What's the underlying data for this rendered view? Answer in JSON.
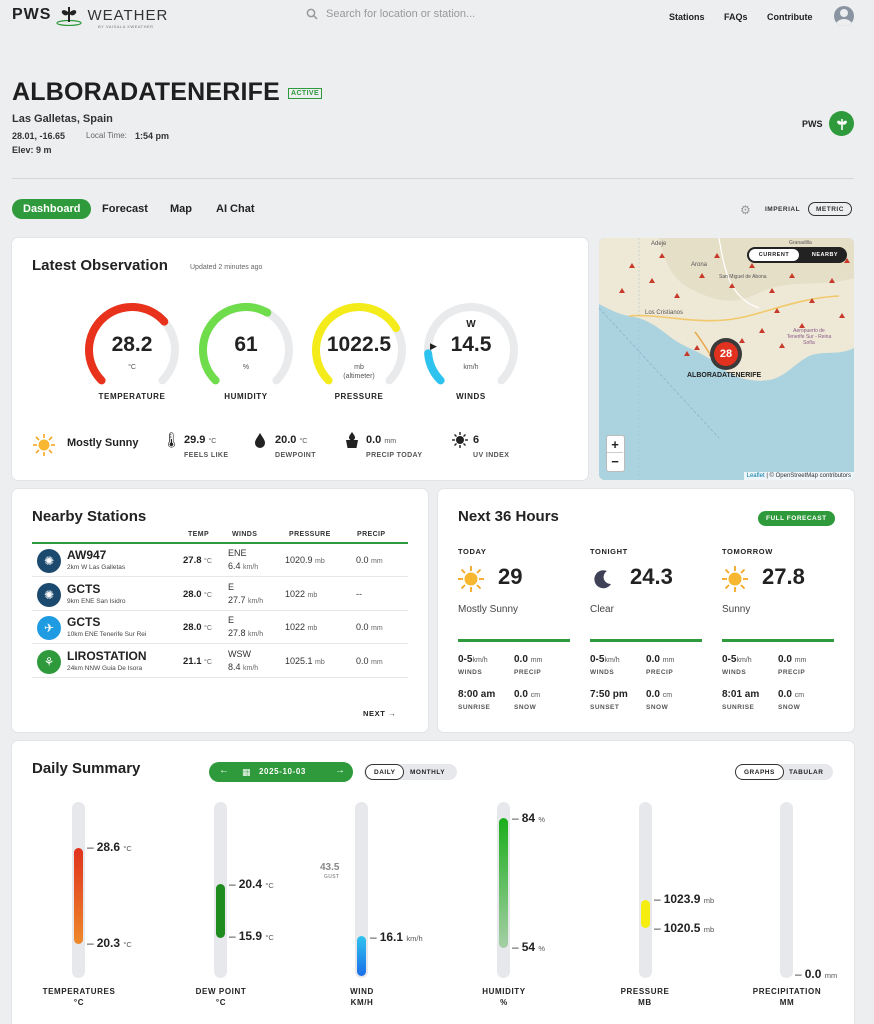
{
  "header": {
    "logo_pws": "PWS",
    "logo_weather": "WEATHER",
    "logo_sub": "BY VAISALA XWEATHER",
    "search_placeholder": "Search for location or station...",
    "nav": [
      "Stations",
      "FAQs",
      "Contribute"
    ]
  },
  "station": {
    "name": "ALBORADATENERIFE",
    "status": "ACTIVE",
    "location": "Las Galletas, Spain",
    "coords": "28.01, -16.65",
    "local_time_label": "Local Time:",
    "local_time": "1:54 pm",
    "elevation": "Elev: 9 m",
    "pws_badge": "PWS"
  },
  "tabs": [
    "Dashboard",
    "Forecast",
    "Map",
    "AI Chat"
  ],
  "units": {
    "imperial": "IMPERIAL",
    "metric": "METRIC",
    "selected": "METRIC"
  },
  "latest": {
    "title": "Latest Observation",
    "updated": "Updated 2 minutes ago",
    "gauges": [
      {
        "label": "TEMPERATURE",
        "value": "28.2",
        "unit": "°C",
        "fraction": 0.68,
        "color": "#e8321b"
      },
      {
        "label": "HUMIDITY",
        "value": "61",
        "unit": "%",
        "fraction": 0.61,
        "color": "#6fdc4c"
      },
      {
        "label": "PRESSURE",
        "value": "1022.5",
        "unit": "mb",
        "unit2": "(altimeter)",
        "fraction": 0.72,
        "color": "#f4ec1a"
      },
      {
        "label": "WINDS",
        "value": "14.5",
        "unit": "km/h",
        "direction": "W",
        "fraction": 0.15,
        "color": "#2ec3ef"
      }
    ],
    "condition": "Mostly Sunny",
    "feels_like": {
      "value": "29.9",
      "unit": "°C",
      "label": "FEELS LIKE"
    },
    "dewpoint": {
      "value": "20.0",
      "unit": "°C",
      "label": "DEWPOINT"
    },
    "precip": {
      "value": "0.0",
      "unit": "mm",
      "label": "PRECIP TODAY"
    },
    "uv": {
      "value": "6",
      "label": "UV INDEX"
    }
  },
  "map": {
    "toggle_current": "CURRENT",
    "toggle_nearby": "NEARBY",
    "marker_value": "28",
    "marker_label": "ALBORADATENERIFE",
    "zoom_in": "+",
    "zoom_out": "−",
    "attribution_leaflet": "Leaflet",
    "attribution_rest": "| © OpenStreetMap contributors",
    "places": [
      "Adeje",
      "Arona",
      "Granadilla",
      "San Miguel de Abona",
      "Los Cristianos",
      "Aeropuerto de Tenerife Sur - Reina Sofía"
    ]
  },
  "nearby": {
    "title": "Nearby Stations",
    "headers": [
      "TEMP",
      "WINDS",
      "PRESSURE",
      "PRECIP"
    ],
    "rows": [
      {
        "id": "AW947",
        "desc": "2km W Las Galletas",
        "temp": "27.8",
        "wind_dir": "ENE",
        "wind_speed": "6.4",
        "pressure": "1020.9",
        "precip": "0.0 mm",
        "icon": "aw-icon",
        "color": "#1c4a6e"
      },
      {
        "id": "GCTS",
        "desc": "9km ENE San Isidro",
        "temp": "28.0",
        "wind_dir": "E",
        "wind_speed": "27.7",
        "pressure": "1022",
        "precip": "--",
        "icon": "aw-icon",
        "color": "#1c4a6e"
      },
      {
        "id": "GCTS",
        "desc": "10km ENE Tenerife Sur Rei",
        "temp": "28.0",
        "wind_dir": "E",
        "wind_speed": "27.8",
        "pressure": "1022",
        "precip": "0.0 mm",
        "icon": "airplane-icon",
        "color": "#1f9be2"
      },
      {
        "id": "LIROSTATION",
        "desc": "24km NNW Guia De Isora",
        "temp": "21.1",
        "wind_dir": "WSW",
        "wind_speed": "8.4",
        "pressure": "1025.1",
        "precip": "0.0 mm",
        "icon": "pws-icon",
        "color": "#2e9a3b"
      }
    ],
    "temp_unit": "°C",
    "wind_unit": "km/h",
    "pressure_unit": "mb",
    "next": "NEXT"
  },
  "next36": {
    "title": "Next 36 Hours",
    "full_forecast": "FULL FORECAST",
    "periods": [
      {
        "label": "TODAY",
        "temp": "29",
        "cond": "Mostly Sunny",
        "icon": "sun-icon",
        "winds": "0-5",
        "precip": "0.0",
        "time": "8:00 am",
        "time_label": "SUNRISE",
        "snow": "0.0"
      },
      {
        "label": "TONIGHT",
        "temp": "24.3",
        "cond": "Clear",
        "icon": "moon-icon",
        "winds": "0-5",
        "precip": "0.0",
        "time": "7:50 pm",
        "time_label": "SUNSET",
        "snow": "0.0"
      },
      {
        "label": "TOMORROW",
        "temp": "27.8",
        "cond": "Sunny",
        "icon": "sun-icon",
        "winds": "0-5",
        "precip": "0.0",
        "time": "8:01 am",
        "time_label": "SUNRISE",
        "snow": "0.0"
      }
    ],
    "winds_unit": "km/h",
    "winds_label": "WINDS",
    "precip_unit": "mm",
    "precip_label": "PRECIP",
    "snow_unit": "cm",
    "snow_label": "SNOW"
  },
  "daily": {
    "title": "Daily Summary",
    "date": "2025-10-03",
    "toggle_daily": "DAILY",
    "toggle_monthly": "MONTHLY",
    "toggle_graphs": "GRAPHS",
    "toggle_tabular": "TABULAR",
    "temperatures": {
      "label": "TEMPERATURES",
      "unit_label": "°C",
      "high": "28.6",
      "low": "20.3",
      "unit": "°C"
    },
    "dewpoint": {
      "label": "DEW POINT",
      "unit_label": "°C",
      "high": "20.4",
      "low": "15.9",
      "unit": "°C"
    },
    "wind": {
      "label": "WIND",
      "unit_label": "KM/H",
      "gust": "43.5",
      "gust_label": "GUST",
      "value": "16.1",
      "unit": "km/h"
    },
    "humidity": {
      "label": "HUMIDITY",
      "unit_label": "%",
      "high": "84",
      "low": "54",
      "unit": "%"
    },
    "pressure": {
      "label": "PRESSURE",
      "unit_label": "MB",
      "high": "1023.9",
      "low": "1020.5",
      "unit": "mb"
    },
    "precipitation": {
      "label": "PRECIPITATION",
      "unit_label": "MM",
      "value": "0.0",
      "unit": "mm"
    }
  }
}
